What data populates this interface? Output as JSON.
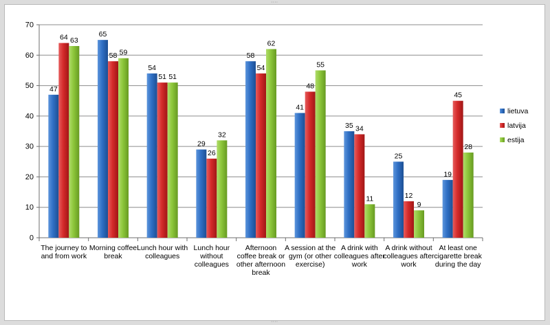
{
  "chart_data": {
    "type": "bar",
    "categories": [
      [
        "The journey to",
        "and from work"
      ],
      [
        "Morning coffee",
        "break"
      ],
      [
        "Lunch hour with",
        "colleagues"
      ],
      [
        "Lunch hour",
        "without",
        "colleagues"
      ],
      [
        "Afternoon",
        "coffee break or",
        "other afternoon",
        "break"
      ],
      [
        "A session at the",
        "gym (or other",
        "exercise)"
      ],
      [
        "A drink with",
        "colleagues after",
        "work"
      ],
      [
        "A drink without",
        "colleagues after",
        "work"
      ],
      [
        "At least one",
        "cigarette break",
        "during the day"
      ]
    ],
    "series": [
      {
        "name": "lietuva",
        "color": "#2f6fc4",
        "values": [
          47,
          65,
          54,
          29,
          58,
          41,
          35,
          25,
          19
        ]
      },
      {
        "name": "latvija",
        "color": "#d42a2a",
        "values": [
          64,
          58,
          51,
          26,
          54,
          48,
          34,
          12,
          45
        ]
      },
      {
        "name": "estija",
        "color": "#8cc63a",
        "values": [
          63,
          59,
          51,
          32,
          62,
          55,
          11,
          9,
          28
        ]
      }
    ],
    "ylim": [
      0,
      70
    ],
    "yticks": [
      0,
      10,
      20,
      30,
      40,
      50,
      60,
      70
    ],
    "grid": true,
    "legend_position": "right",
    "title": "",
    "xlabel": "",
    "ylabel": ""
  }
}
